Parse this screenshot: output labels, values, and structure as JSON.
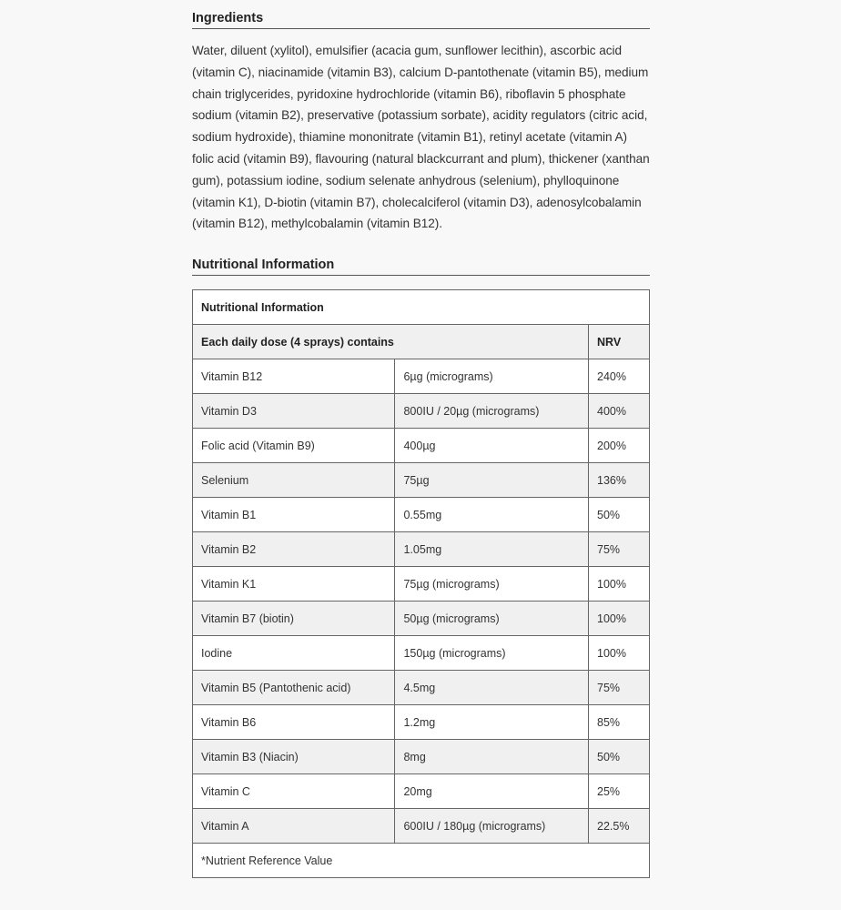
{
  "ingredients": {
    "heading": "Ingredients",
    "text": "Water, diluent (xylitol), emulsifier (acacia gum, sunflower lecithin), ascorbic acid (vitamin C), niacinamide (vitamin B3), calcium D-pantothenate (vitamin B5), medium chain triglycerides, pyridoxine hydrochloride (vitamin B6), riboflavin 5 phosphate sodium (vitamin B2), preservative (potassium sorbate), acidity regulators (citric acid, sodium hydroxide), thiamine mononitrate (vitamin B1), retinyl acetate (vitamin A) folic acid (vitamin B9), flavouring (natural blackcurrant and plum), thickener (xanthan gum), potassium iodine, sodium selenate anhydrous (selenium), phylloquinone (vitamin K1), D-biotin (vitamin B7), cholecalciferol (vitamin D3), adenosylcobalamin (vitamin B12), methylcobalamin (vitamin B12)."
  },
  "nutrition": {
    "heading": "Nutritional Information",
    "table_title": "Nutritional Information",
    "header_dose": "Each daily dose (4 sprays) contains",
    "header_nrv": "NRV",
    "rows": [
      {
        "name": "Vitamin B12",
        "amount": "6µg (micrograms)",
        "nrv": "240%"
      },
      {
        "name": "Vitamin D3",
        "amount": "800IU / 20µg (micrograms)",
        "nrv": "400%"
      },
      {
        "name": "Folic acid (Vitamin B9)",
        "amount": "400µg",
        "nrv": "200%"
      },
      {
        "name": "Selenium",
        "amount": "75µg",
        "nrv": "136%"
      },
      {
        "name": "Vitamin B1",
        "amount": "0.55mg",
        "nrv": "50%"
      },
      {
        "name": "Vitamin B2",
        "amount": "1.05mg",
        "nrv": "75%"
      },
      {
        "name": "Vitamin K1",
        "amount": "75µg (micrograms)",
        "nrv": "100%"
      },
      {
        "name": "Vitamin B7 (biotin)",
        "amount": "50µg (micrograms)",
        "nrv": "100%"
      },
      {
        "name": "Iodine",
        "amount": "150µg (micrograms)",
        "nrv": "100%"
      },
      {
        "name": "Vitamin B5 (Pantothenic acid)",
        "amount": "4.5mg",
        "nrv": "75%"
      },
      {
        "name": "Vitamin B6",
        "amount": "1.2mg",
        "nrv": "85%"
      },
      {
        "name": "Vitamin B3 (Niacin)",
        "amount": "8mg",
        "nrv": "50%"
      },
      {
        "name": "Vitamin C",
        "amount": "20mg",
        "nrv": "25%"
      },
      {
        "name": "Vitamin A",
        "amount": "600IU / 180µg (micrograms)",
        "nrv": "22.5%"
      }
    ],
    "footnote": "*Nutrient Reference Value"
  }
}
